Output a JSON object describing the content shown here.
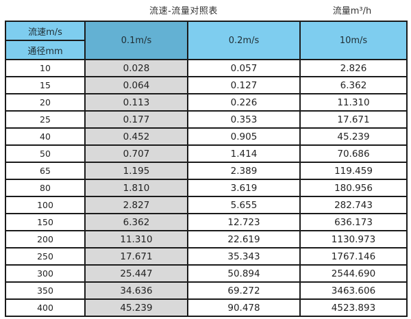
{
  "header": {
    "title": "流速-流量对照表",
    "unit_label": "流量m³/h"
  },
  "colors": {
    "header_blue": "#7ecdef",
    "highlighted_header_blue": "#63b1d3",
    "highlighted_column_gray": "#d9d9d9",
    "border": "#1a1a1a",
    "background": "#ffffff"
  },
  "chart_data": {
    "type": "table",
    "title": "流速-流量对照表",
    "unit_label": "流量m³/h",
    "corner_top": "流速m/s",
    "corner_bottom": "通径mm",
    "velocity_columns": [
      "0.1m/s",
      "0.2m/s",
      "10m/s"
    ],
    "highlighted_column": "0.1m/s",
    "rows": [
      {
        "diameter": "10",
        "values": [
          "0.028",
          "0.057",
          "2.826"
        ]
      },
      {
        "diameter": "15",
        "values": [
          "0.064",
          "0.127",
          "6.362"
        ]
      },
      {
        "diameter": "20",
        "values": [
          "0.113",
          "0.226",
          "11.310"
        ]
      },
      {
        "diameter": "25",
        "values": [
          "0.177",
          "0.353",
          "17.671"
        ]
      },
      {
        "diameter": "40",
        "values": [
          "0.452",
          "0.905",
          "45.239"
        ]
      },
      {
        "diameter": "50",
        "values": [
          "0.707",
          "1.414",
          "70.686"
        ]
      },
      {
        "diameter": "65",
        "values": [
          "1.195",
          "2.389",
          "119.459"
        ]
      },
      {
        "diameter": "80",
        "values": [
          "1.810",
          "3.619",
          "180.956"
        ]
      },
      {
        "diameter": "100",
        "values": [
          "2.827",
          "5.655",
          "282.743"
        ]
      },
      {
        "diameter": "150",
        "values": [
          "6.362",
          "12.723",
          "636.173"
        ]
      },
      {
        "diameter": "200",
        "values": [
          "11.310",
          "22.619",
          "1130.973"
        ]
      },
      {
        "diameter": "250",
        "values": [
          "17.671",
          "35.343",
          "1767.146"
        ]
      },
      {
        "diameter": "300",
        "values": [
          "25.447",
          "50.894",
          "2544.690"
        ]
      },
      {
        "diameter": "350",
        "values": [
          "34.636",
          "69.272",
          "3463.606"
        ]
      },
      {
        "diameter": "400",
        "values": [
          "45.239",
          "90.478",
          "4523.893"
        ]
      }
    ]
  }
}
